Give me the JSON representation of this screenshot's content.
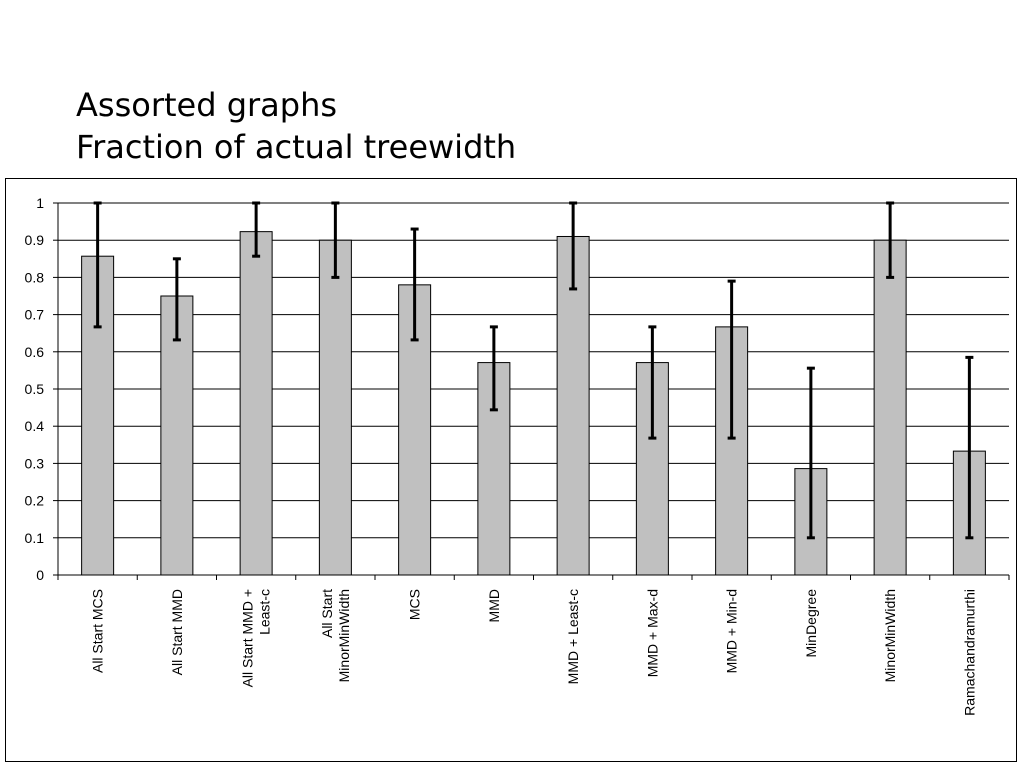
{
  "slide": {
    "title_line1": "Assorted graphs",
    "title_line2": "Fraction of actual treewidth"
  },
  "colors": {
    "bar_fill": "#c0c0c0",
    "bar_stroke": "#000000",
    "grid": "#000000",
    "error_bar": "#000000"
  },
  "chart_data": {
    "type": "bar",
    "title": "",
    "xlabel": "",
    "ylabel": "",
    "ylim": [
      0,
      1
    ],
    "yticks": [
      "0",
      "0.1",
      "0.2",
      "0.3",
      "0.4",
      "0.5",
      "0.6",
      "0.7",
      "0.8",
      "0.9",
      "1"
    ],
    "grid": true,
    "legend": "none",
    "categories": [
      [
        "All Start MCS"
      ],
      [
        "All Start MMD"
      ],
      [
        "All Start MMD +",
        "Least-c"
      ],
      [
        "All Start",
        "MinorMinWidth"
      ],
      [
        "MCS"
      ],
      [
        "MMD"
      ],
      [
        "MMD + Least-c"
      ],
      [
        "MMD + Max-d"
      ],
      [
        "MMD + Min-d"
      ],
      [
        "MinDegree"
      ],
      [
        "MinorMinWidth"
      ],
      [
        "Ramachandramurthi"
      ]
    ],
    "values": [
      0.857,
      0.75,
      0.923,
      0.9,
      0.78,
      0.571,
      0.91,
      0.571,
      0.667,
      0.286,
      0.9,
      0.333
    ],
    "error_low": [
      0.667,
      0.632,
      0.857,
      0.8,
      0.632,
      0.444,
      0.769,
      0.368,
      0.368,
      0.1,
      0.8,
      0.1
    ],
    "error_high": [
      1.0,
      0.85,
      1.0,
      1.0,
      0.93,
      0.667,
      1.0,
      0.667,
      0.79,
      0.556,
      1.0,
      0.585
    ]
  }
}
